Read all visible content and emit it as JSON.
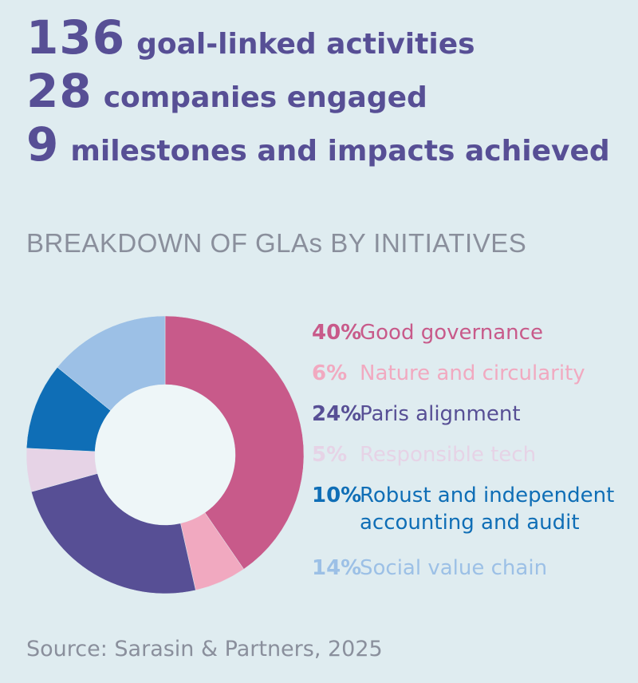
{
  "headline_stats": [
    {
      "number": "136",
      "label": "goal-linked activities"
    },
    {
      "number": "28",
      "label": "companies engaged"
    },
    {
      "number": "9",
      "label": "milestones and impacts achieved"
    }
  ],
  "colors": {
    "background": "#dfecf0",
    "headline": "#574f95",
    "muted_text": "#8a8f9c",
    "donut_hole": "#eef6f8"
  },
  "chart_data": {
    "type": "pie",
    "title": "BREAKDOWN OF GLAs BY INITIATIVES",
    "donut": true,
    "slices": [
      {
        "pct_label": "40%",
        "label": "Good governance",
        "value": 40,
        "color": "#c85a8a"
      },
      {
        "pct_label": "6%",
        "label": "Nature and circularity",
        "value": 6,
        "color": "#f1a9c0"
      },
      {
        "pct_label": "24%",
        "label": "Paris alignment",
        "value": 24,
        "color": "#574f95"
      },
      {
        "pct_label": "5%",
        "label": "Responsible tech",
        "value": 5,
        "color": "#e6d3e6"
      },
      {
        "pct_label": "10%",
        "label": "Robust and independent\naccounting and audit",
        "value": 10,
        "color": "#0f6eb6"
      },
      {
        "pct_label": "14%",
        "label": "Social value chain",
        "value": 14,
        "color": "#9cc0e6"
      }
    ]
  },
  "source": "Source: Sarasin & Partners, 2025"
}
